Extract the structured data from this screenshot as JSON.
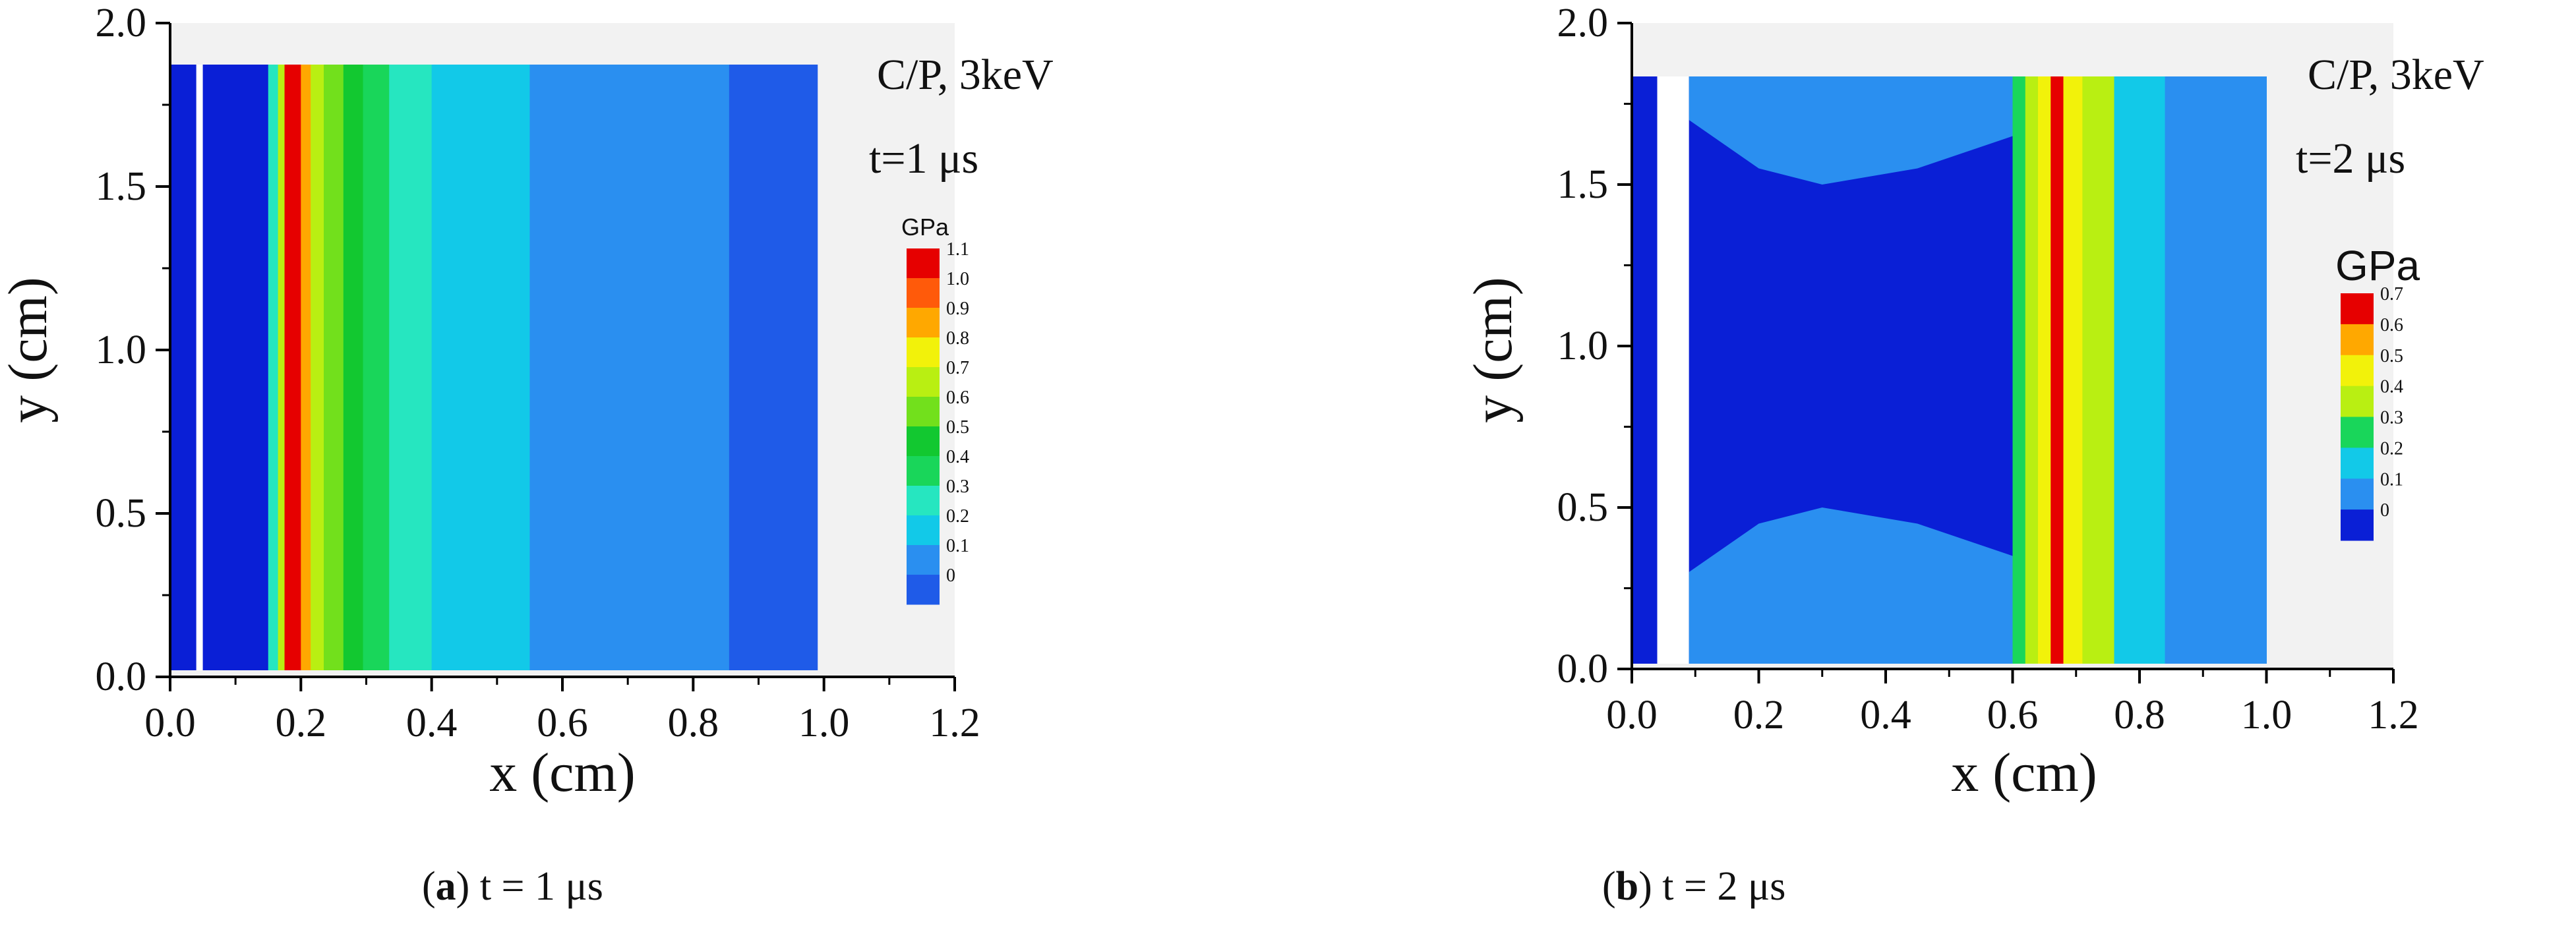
{
  "figure": {
    "colors": {
      "c0": "#0a1fd6",
      "c1": "#1f5be8",
      "c2": "#2a8ff0",
      "c3": "#12c9e8",
      "c4": "#26e6c0",
      "c5": "#19d65a",
      "c6": "#12c830",
      "c7": "#72e01c",
      "c8": "#b9ef12",
      "c9": "#f2f20a",
      "c10": "#ffa800",
      "c11": "#ff5a0a",
      "c12": "#e60000",
      "bg": "#f2f2f2"
    }
  },
  "chart_data": [
    {
      "id": "a",
      "type": "heatmap",
      "title": "C/P, 3keV",
      "time_label": "t=1 μs",
      "xlabel": "x  (cm)",
      "ylabel": "y  (cm)",
      "xlim": [
        0.0,
        1.2
      ],
      "ylim": [
        0.0,
        2.0
      ],
      "x_ticks": [
        "0.0",
        "0.2",
        "0.4",
        "0.6",
        "0.8",
        "1.0",
        "1.2"
      ],
      "y_ticks": [
        "0.0",
        "0.5",
        "1.0",
        "1.5",
        "2.0"
      ],
      "colorbar": {
        "unit": "GPa",
        "levels": [
          "1.1",
          "1.0",
          "0.9",
          "0.8",
          "0.7",
          "0.6",
          "0.5",
          "0.4",
          "0.3",
          "0.2",
          "0.1",
          "0"
        ]
      },
      "bands": [
        {
          "x0": 0.0,
          "x1": 0.04,
          "level": 0
        },
        {
          "x0": 0.04,
          "x1": 0.05,
          "level": -1
        },
        {
          "x0": 0.05,
          "x1": 0.15,
          "level": 0
        },
        {
          "x0": 0.15,
          "x1": 0.165,
          "level": 4
        },
        {
          "x0": 0.165,
          "x1": 0.175,
          "level": 8
        },
        {
          "x0": 0.175,
          "x1": 0.2,
          "level": 12
        },
        {
          "x0": 0.2,
          "x1": 0.215,
          "level": 10
        },
        {
          "x0": 0.215,
          "x1": 0.235,
          "level": 8
        },
        {
          "x0": 0.235,
          "x1": 0.265,
          "level": 7
        },
        {
          "x0": 0.265,
          "x1": 0.295,
          "level": 6
        },
        {
          "x0": 0.295,
          "x1": 0.335,
          "level": 5
        },
        {
          "x0": 0.335,
          "x1": 0.4,
          "level": 4
        },
        {
          "x0": 0.4,
          "x1": 0.55,
          "level": 3
        },
        {
          "x0": 0.55,
          "x1": 0.855,
          "level": 2
        },
        {
          "x0": 0.855,
          "x1": 0.99,
          "level": 1
        }
      ],
      "caption": {
        "letter": "a",
        "text": " t = 1 μs"
      }
    },
    {
      "id": "b",
      "type": "heatmap",
      "title": "C/P, 3keV",
      "time_label": "t=2 μs",
      "xlabel": "x  (cm)",
      "ylabel": "y  (cm)",
      "xlim": [
        0.0,
        1.2
      ],
      "ylim": [
        0.0,
        2.0
      ],
      "x_ticks": [
        "0.0",
        "0.2",
        "0.4",
        "0.6",
        "0.8",
        "1.0",
        "1.2"
      ],
      "y_ticks": [
        "0.0",
        "0.5",
        "1.0",
        "1.5",
        "2.0"
      ],
      "colorbar": {
        "unit": "GPa",
        "levels": [
          "0.7",
          "0.6",
          "0.5",
          "0.4",
          "0.3",
          "0.2",
          "0.1",
          "0"
        ]
      },
      "bands": [
        {
          "x0": 0.0,
          "x1": 0.04,
          "level": 0
        },
        {
          "x0": 0.04,
          "x1": 0.09,
          "level": -1
        },
        {
          "x0": 0.09,
          "x1": 0.6,
          "level": 0
        },
        {
          "x0": 0.6,
          "x1": 0.62,
          "level": 3
        },
        {
          "x0": 0.62,
          "x1": 0.64,
          "level": 4
        },
        {
          "x0": 0.64,
          "x1": 0.66,
          "level": 5
        },
        {
          "x0": 0.66,
          "x1": 0.68,
          "level": 7
        },
        {
          "x0": 0.68,
          "x1": 0.71,
          "level": 5
        },
        {
          "x0": 0.71,
          "x1": 0.76,
          "level": 4
        },
        {
          "x0": 0.76,
          "x1": 0.84,
          "level": 2
        },
        {
          "x0": 0.84,
          "x1": 1.0,
          "level": 1
        }
      ],
      "caption": {
        "letter": "b",
        "text": " t = 2 μs"
      }
    }
  ]
}
